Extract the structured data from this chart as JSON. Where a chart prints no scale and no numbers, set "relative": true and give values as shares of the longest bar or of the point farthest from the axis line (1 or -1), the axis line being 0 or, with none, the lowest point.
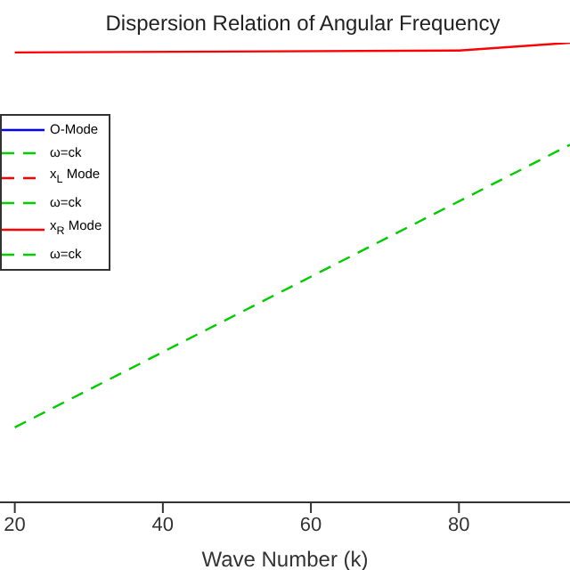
{
  "chart_data": {
    "type": "line",
    "title": "Dispersion Relation of Angular Frequency",
    "xlabel": "Wave Number (k)",
    "relative": true,
    "xlim": [
      18,
      95
    ],
    "xticks": [
      20,
      40,
      60,
      80
    ],
    "legend": "top left",
    "series": [
      {
        "name": "O-Mode",
        "color": "#0000ff",
        "line_style": "solid"
      },
      {
        "name": "ω=ck",
        "color": "#00cc00",
        "line_style": "dashed",
        "x": [
          20,
          95
        ],
        "values": [
          0.163,
          0.778
        ]
      },
      {
        "name": "x$_{L}$ Mode",
        "color": "#ff0000",
        "line_style": "dashed"
      },
      {
        "name": "ω=ck",
        "color": "#00cc00",
        "line_style": "dashed"
      },
      {
        "name": "x$_{R}$ Mode",
        "color": "#ff0000",
        "line_style": "solid",
        "x": [
          20,
          80,
          95
        ],
        "values": [
          0.979,
          0.983,
          1
        ]
      },
      {
        "name": "ω=ck",
        "color": "#00cc00",
        "line_style": "dashed"
      }
    ]
  }
}
